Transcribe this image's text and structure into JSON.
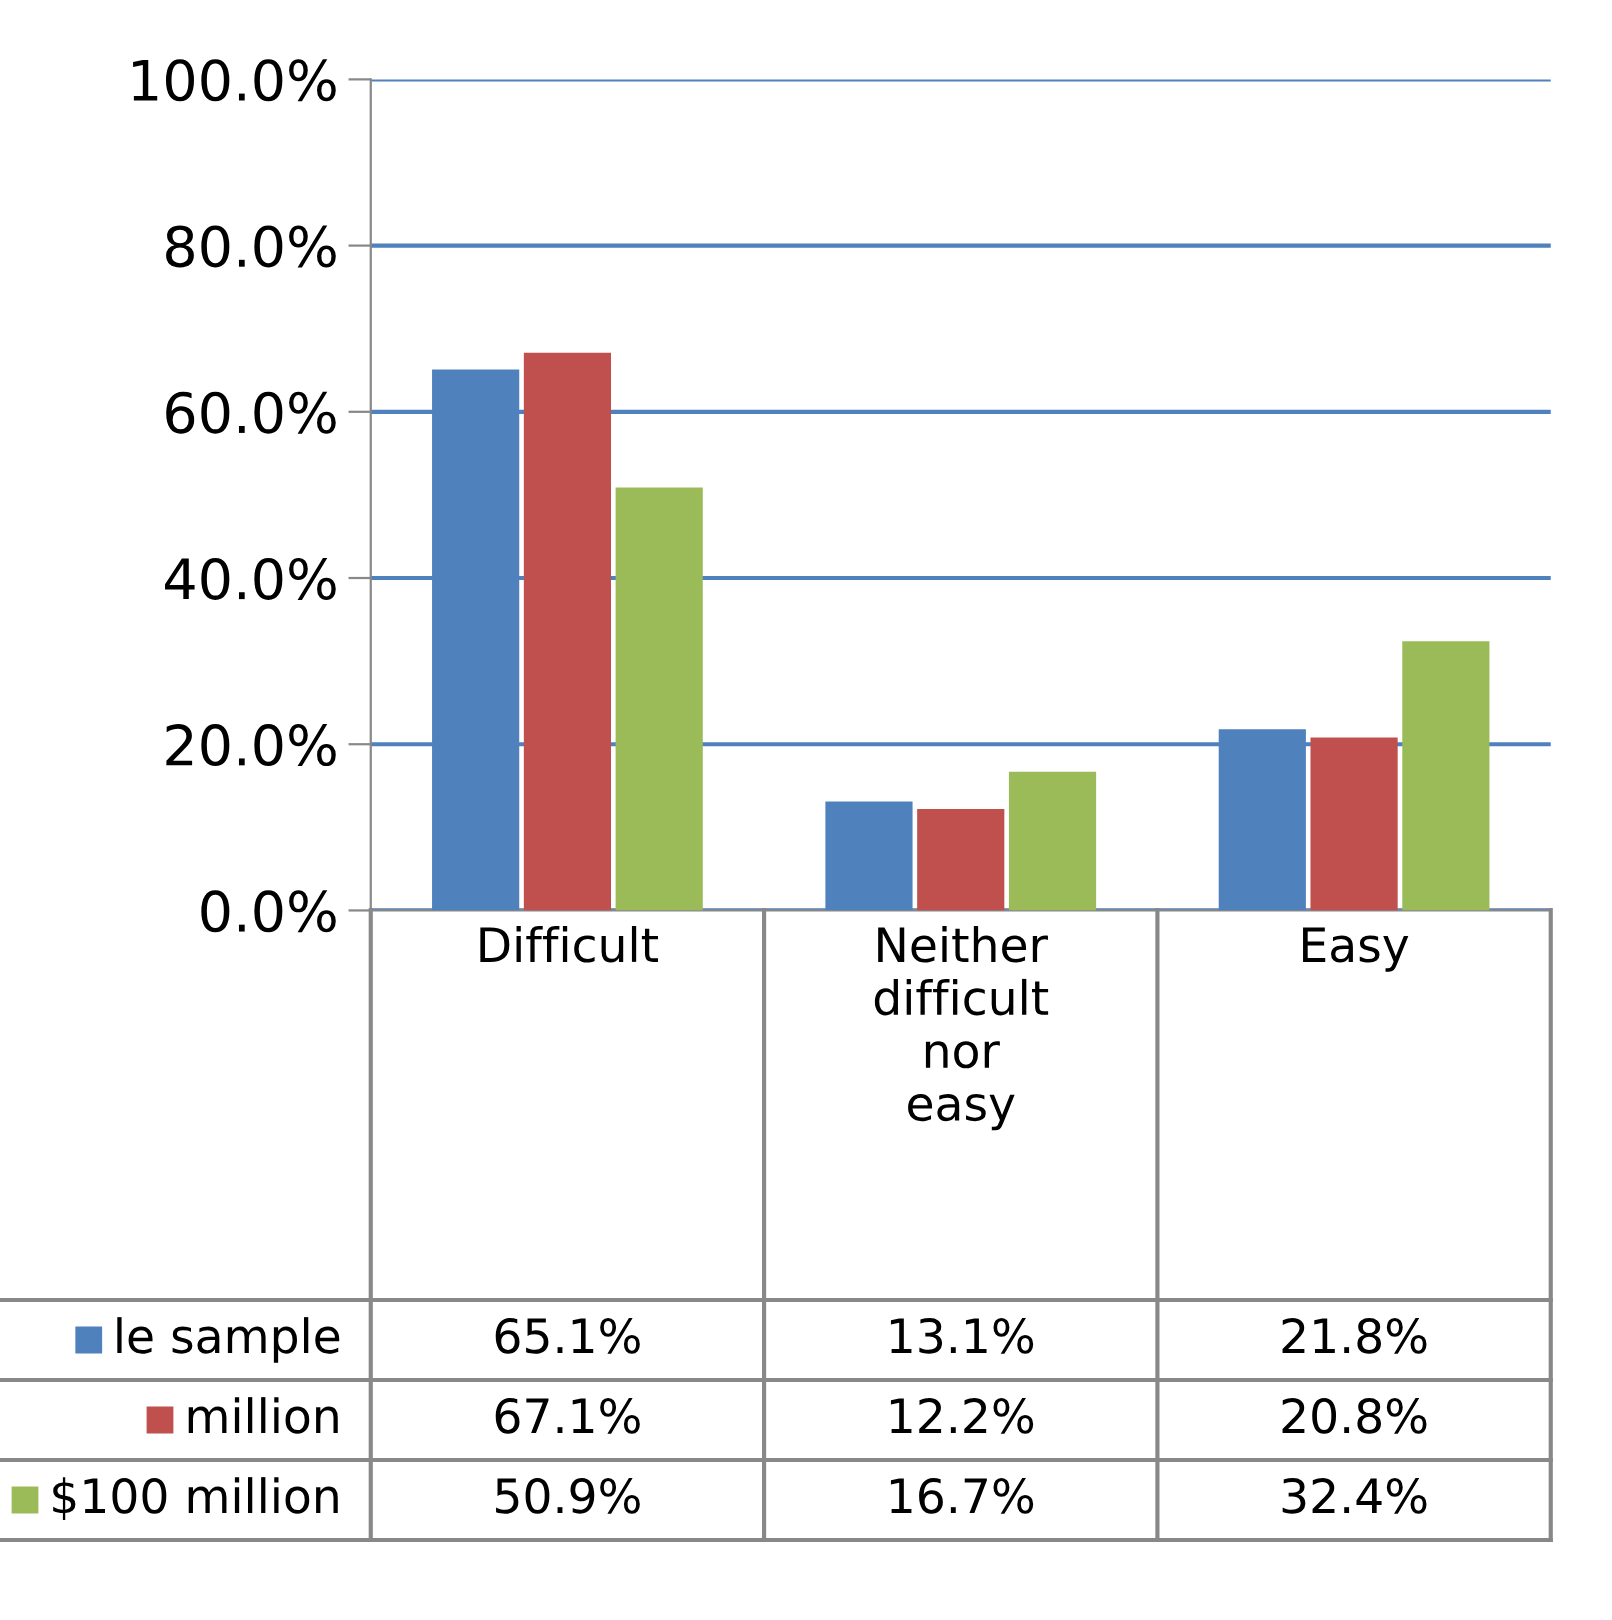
{
  "chart_data": {
    "type": "bar",
    "categories": [
      "Difficult",
      "Neither difficult nor easy",
      "Easy"
    ],
    "series": [
      {
        "name": "le sample",
        "color": "#4f81bd",
        "values": [
          65.1,
          13.1,
          21.8
        ],
        "value_labels": [
          "65.1%",
          "13.1%",
          "21.8%"
        ]
      },
      {
        "name": "million",
        "color": "#c0504d",
        "values": [
          67.1,
          12.2,
          20.8
        ],
        "value_labels": [
          "67.1%",
          "12.2%",
          "20.8%"
        ]
      },
      {
        "name": "$100 million",
        "color": "#9bbb59",
        "values": [
          50.9,
          16.7,
          32.4
        ],
        "value_labels": [
          "50.9%",
          "16.7%",
          "32.4%"
        ]
      }
    ],
    "ylim": [
      0,
      100
    ],
    "yticks": [
      {
        "value": 0,
        "label": "0.0%"
      },
      {
        "value": 20,
        "label": "20.0%"
      },
      {
        "value": 40,
        "label": "40.0%"
      },
      {
        "value": 60,
        "label": "60.0%"
      },
      {
        "value": 80,
        "label": "80.0%"
      },
      {
        "value": 100,
        "label": "100.0%"
      }
    ],
    "grid": "y",
    "legend": "bottom left"
  }
}
